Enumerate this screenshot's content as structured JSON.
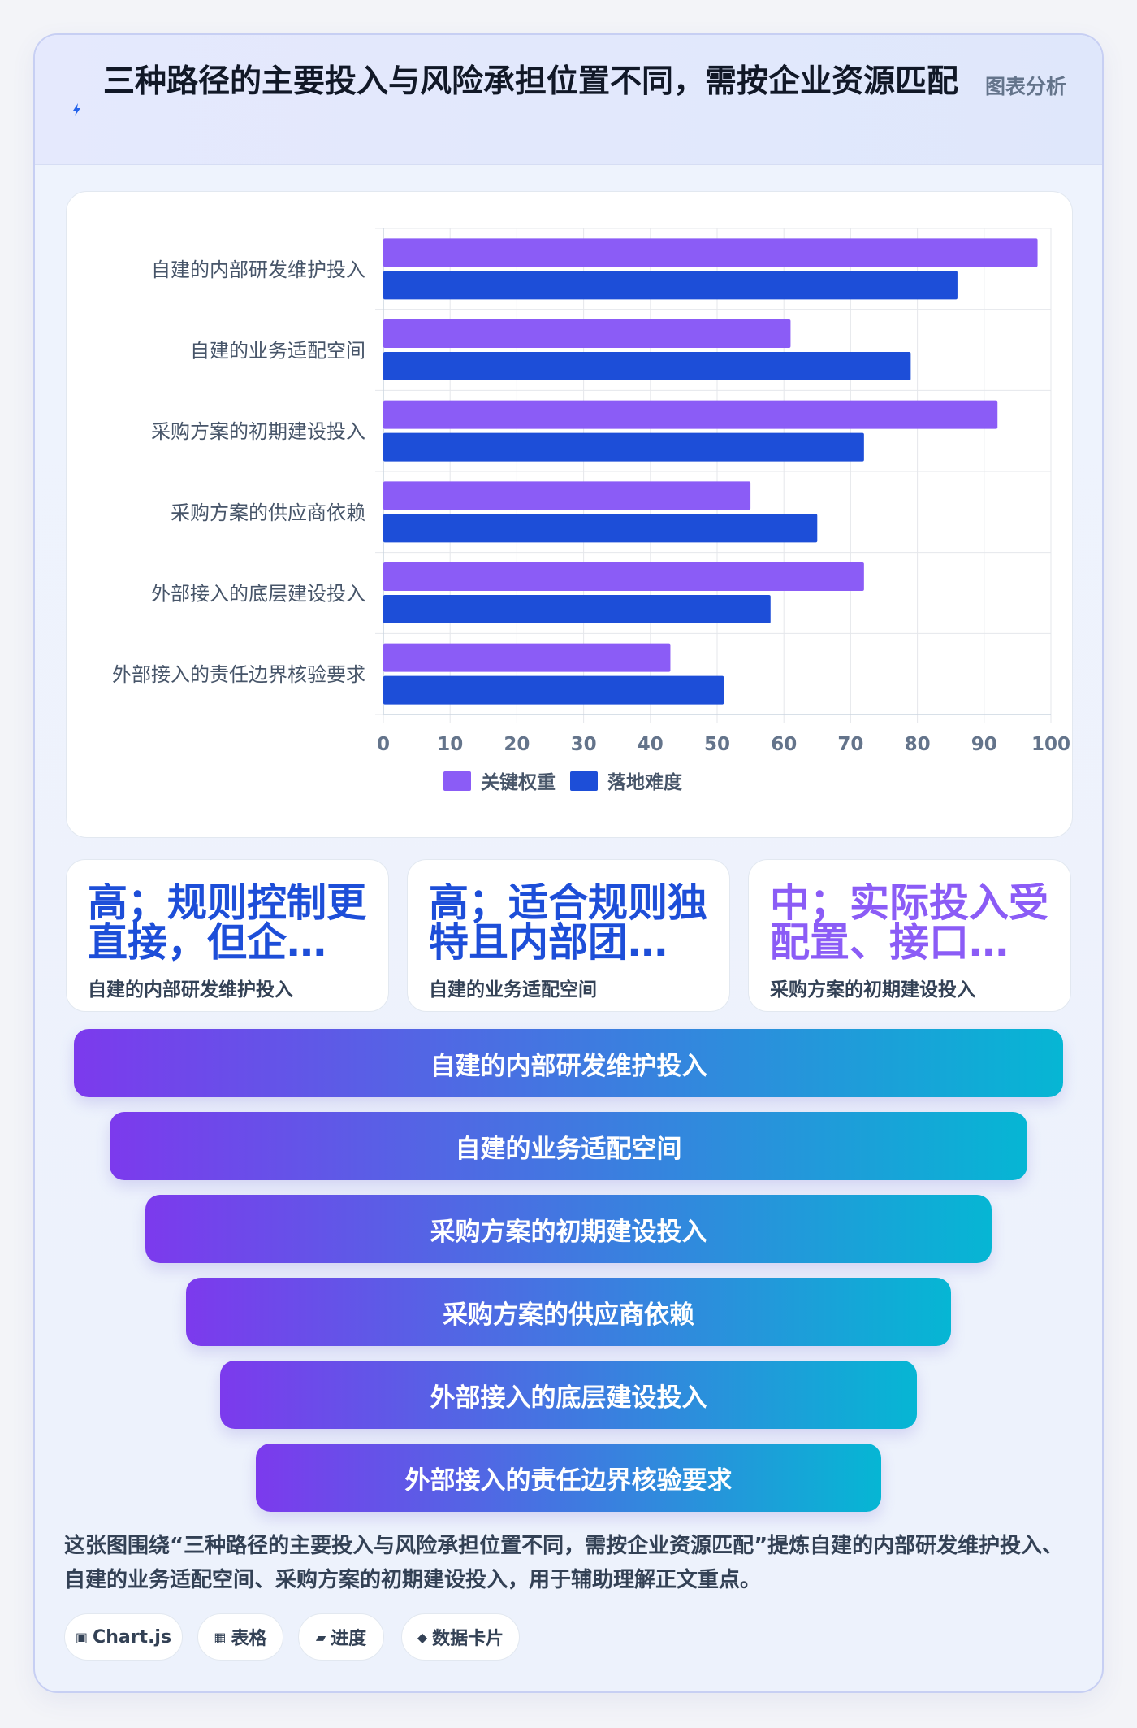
{
  "header": {
    "title": "三种路径的主要投入与风险承担位置不同，需按企业资源匹配",
    "tag": "图表分析"
  },
  "chart_data": {
    "type": "bar",
    "orientation": "horizontal",
    "categories": [
      "自建的内部研发维护投入",
      "自建的业务适配空间",
      "采购方案的初期建设投入",
      "采购方案的供应商依赖",
      "外部接入的底层建设投入",
      "外部接入的责任边界核验要求"
    ],
    "series": [
      {
        "name": "关键权重",
        "color": "#8b5cf6",
        "values": [
          98,
          61,
          92,
          55,
          72,
          43
        ]
      },
      {
        "name": "落地难度",
        "color": "#1d4ed8",
        "values": [
          86,
          79,
          72,
          65,
          58,
          51
        ]
      }
    ],
    "xlim": [
      0,
      100
    ],
    "xticks": [
      0,
      10,
      20,
      30,
      40,
      50,
      60,
      70,
      80,
      90,
      100
    ],
    "grid": true,
    "legend_position": "bottom"
  },
  "metrics": [
    {
      "value": "高；规则控制更直接，但企…",
      "label": "自建的内部研发维护投入",
      "color": "#1d4ed8"
    },
    {
      "value": "高；适合规则独特且内部团…",
      "label": "自建的业务适配空间",
      "color": "#1d4ed8"
    },
    {
      "value": "中；实际投入受配置、接口…",
      "label": "采购方案的初期建设投入",
      "color": "#8b5cf6"
    }
  ],
  "funnel": [
    "自建的内部研发维护投入",
    "自建的业务适配空间",
    "采购方案的初期建设投入",
    "采购方案的供应商依赖",
    "外部接入的底层建设投入",
    "外部接入的责任边界核验要求"
  ],
  "summary": "这张图围绕“三种路径的主要投入与风险承担位置不同，需按企业资源匹配”提炼自建的内部研发维护投入、自建的业务适配空间、采购方案的初期建设投入，用于辅助理解正文重点。",
  "chips": [
    {
      "icon": "▣",
      "label": "Chart.js"
    },
    {
      "icon": "▦",
      "label": "表格"
    },
    {
      "icon": "▰",
      "label": "进度"
    },
    {
      "icon": "◆",
      "label": "数据卡片"
    }
  ],
  "icons": {
    "header": "lightning-bolt-icon"
  }
}
